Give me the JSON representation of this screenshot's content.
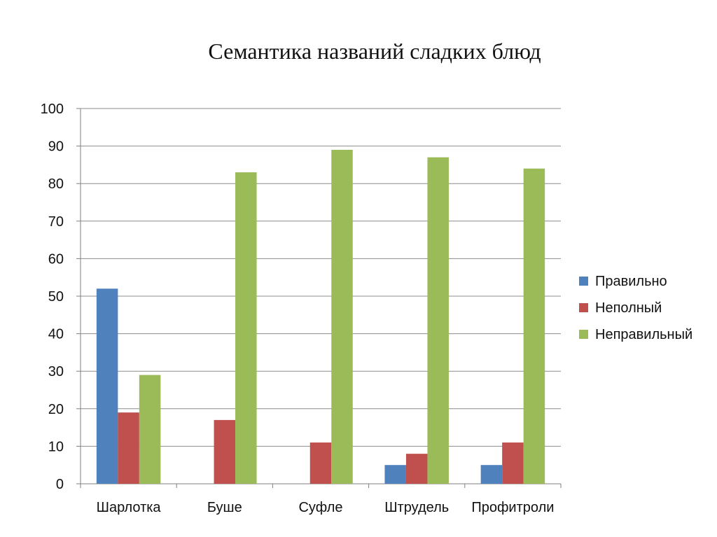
{
  "chart_data": {
    "type": "bar",
    "title": "Семантика названий сладких блюд",
    "xlabel": "",
    "ylabel": "",
    "ylim": [
      0,
      100
    ],
    "yticks": [
      0,
      10,
      20,
      30,
      40,
      50,
      60,
      70,
      80,
      90,
      100
    ],
    "grid": true,
    "legend_position": "right",
    "categories": [
      "Шарлотка",
      "Буше",
      "Суфле",
      "Штрудель",
      "Профитроли"
    ],
    "series": [
      {
        "name": "Правильно",
        "color": "#4f81bd",
        "values": [
          52,
          0,
          0,
          5,
          5
        ]
      },
      {
        "name": "Неполный",
        "color": "#c0504d",
        "values": [
          19,
          17,
          11,
          8,
          11
        ]
      },
      {
        "name": "Неправильный",
        "color": "#9bbb59",
        "values": [
          29,
          83,
          89,
          87,
          84
        ]
      }
    ]
  }
}
